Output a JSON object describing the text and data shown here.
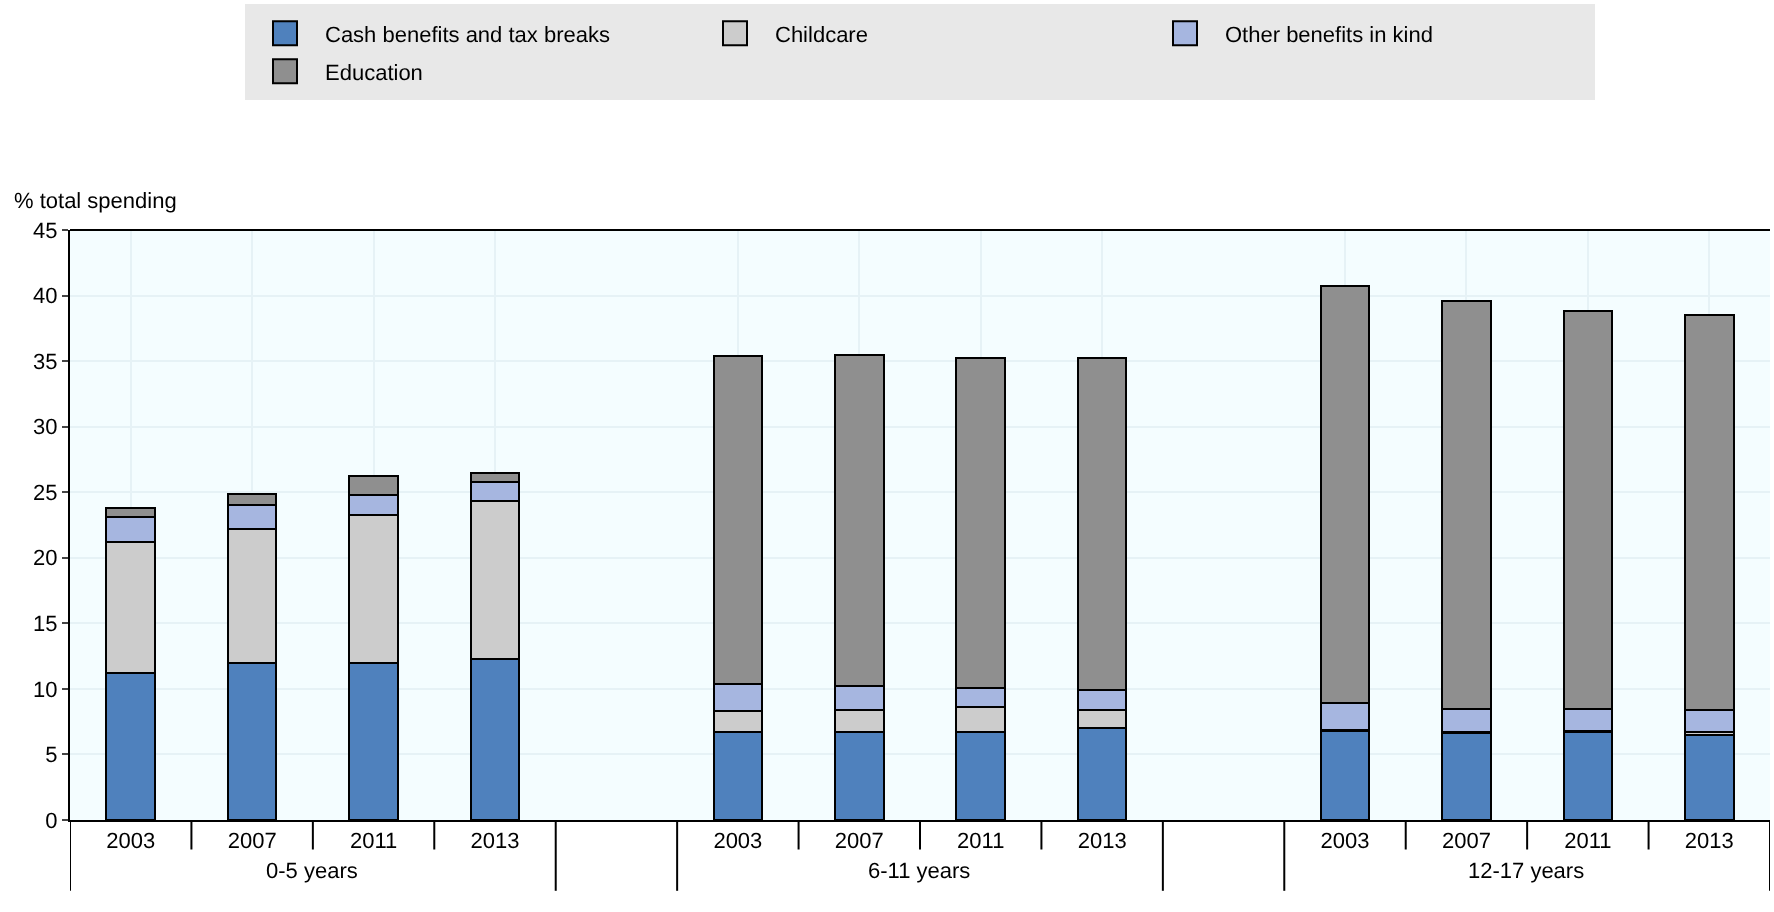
{
  "chart_data": {
    "type": "bar",
    "stacked": true,
    "ylabel": "% total spending",
    "categories": [
      "2003",
      "2007",
      "2011",
      "2013",
      null,
      "2003",
      "2007",
      "2011",
      "2013",
      null,
      "2003",
      "2007",
      "2011",
      "2013"
    ],
    "series": [
      {
        "name": "Cash benefits and tax breaks",
        "color": "#4f81bd",
        "values": [
          11.2,
          12.0,
          12.0,
          12.3,
          null,
          6.7,
          6.7,
          6.7,
          7.0,
          null,
          6.8,
          6.6,
          6.7,
          6.5
        ]
      },
      {
        "name": "Childcare",
        "color": "#cccccc",
        "values": [
          10.0,
          10.2,
          11.3,
          12.0,
          null,
          1.6,
          1.7,
          1.9,
          1.4,
          null,
          0.1,
          0.1,
          0.1,
          0.2
        ]
      },
      {
        "name": "Other benefits in kind",
        "color": "#a6b6e0",
        "values": [
          1.9,
          1.8,
          1.5,
          1.5,
          null,
          2.1,
          1.8,
          1.5,
          1.5,
          null,
          2.0,
          1.8,
          1.7,
          1.7
        ]
      },
      {
        "name": "Education",
        "color": "#8f8f8f",
        "values": [
          0.7,
          0.9,
          1.4,
          0.7,
          null,
          25.0,
          25.3,
          25.1,
          25.3,
          null,
          31.8,
          31.1,
          30.3,
          30.1
        ]
      }
    ],
    "ylim": [
      0,
      45
    ],
    "yticks": [
      0,
      5,
      10,
      15,
      20,
      25,
      30,
      35,
      40,
      45
    ],
    "annotations": [
      "0-5 years",
      "6-11 years",
      "12-17 years"
    ],
    "grid": true,
    "legend": "top"
  }
}
